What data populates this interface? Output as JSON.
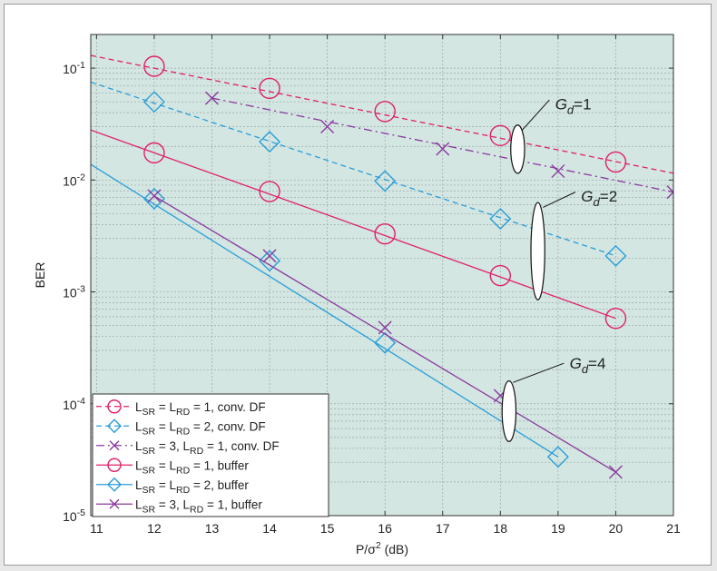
{
  "chart_data": {
    "type": "line",
    "xlabel": "P/σ",
    "xlabel_sup": "2",
    "xlabel_suffix": " (dB)",
    "ylabel": "BER",
    "xlim": [
      10.9,
      21
    ],
    "ylim": [
      1e-05,
      0.2
    ],
    "yscale": "log",
    "grid": true,
    "x_ticks": [
      11,
      12,
      13,
      14,
      15,
      16,
      17,
      18,
      19,
      20,
      21
    ],
    "y_ticks": [
      {
        "value": 0.1,
        "base": "10",
        "exp": "-1"
      },
      {
        "value": 0.01,
        "base": "10",
        "exp": "-2"
      },
      {
        "value": 0.001,
        "base": "10",
        "exp": "-3"
      },
      {
        "value": 0.0001,
        "base": "10",
        "exp": "-4"
      },
      {
        "value": 1e-05,
        "base": "10",
        "exp": "-5"
      }
    ],
    "series": [
      {
        "legend": [
          {
            "t": "L"
          },
          {
            "t": "SR",
            "sub": true
          },
          {
            "t": " = L"
          },
          {
            "t": "RD",
            "sub": true
          },
          {
            "t": " = 1, conv. DF"
          }
        ],
        "color": "#e0206a",
        "dash": "6,4",
        "marker": "circle",
        "marker_size": 11,
        "line": {
          "x": [
            10.9,
            21
          ],
          "y": [
            0.13,
            0.0115
          ]
        },
        "points": {
          "x": [
            12,
            14,
            16,
            18,
            20
          ],
          "y": [
            0.104,
            0.066,
            0.041,
            0.025,
            0.0145
          ]
        }
      },
      {
        "legend": [
          {
            "t": "L"
          },
          {
            "t": "SR",
            "sub": true
          },
          {
            "t": " = L"
          },
          {
            "t": "RD",
            "sub": true
          },
          {
            "t": " = 2, conv. DF"
          }
        ],
        "color": "#2a9ed8",
        "dash": "6,4",
        "marker": "diamond",
        "marker_size": 11,
        "line": {
          "x": [
            10.9,
            20
          ],
          "y": [
            0.075,
            0.0021
          ]
        },
        "points": {
          "x": [
            12,
            14,
            16,
            18,
            20
          ],
          "y": [
            0.05,
            0.022,
            0.0098,
            0.0045,
            0.0021
          ]
        }
      },
      {
        "legend": [
          {
            "t": "L"
          },
          {
            "t": "SR",
            "sub": true
          },
          {
            "t": " = 3, L"
          },
          {
            "t": "RD",
            "sub": true
          },
          {
            "t": " = 1, conv. DF"
          }
        ],
        "color": "#8a3a9e",
        "dash": "9,4,2,4",
        "marker": "x",
        "marker_size": 7,
        "line": {
          "x": [
            13,
            21
          ],
          "y": [
            0.054,
            0.0078
          ]
        },
        "points": {
          "x": [
            13,
            15,
            17,
            19,
            21
          ],
          "y": [
            0.054,
            0.03,
            0.019,
            0.012,
            0.0078
          ]
        }
      },
      {
        "legend": [
          {
            "t": "L"
          },
          {
            "t": "SR",
            "sub": true
          },
          {
            "t": " = L"
          },
          {
            "t": "RD",
            "sub": true
          },
          {
            "t": " = 1, buffer"
          }
        ],
        "color": "#e0206a",
        "dash": "",
        "marker": "circle",
        "marker_size": 11,
        "line": {
          "x": [
            10.9,
            20
          ],
          "y": [
            0.028,
            0.00058
          ]
        },
        "points": {
          "x": [
            12,
            14,
            16,
            18,
            20
          ],
          "y": [
            0.0175,
            0.0079,
            0.0033,
            0.0014,
            0.00058
          ]
        }
      },
      {
        "legend": [
          {
            "t": "L"
          },
          {
            "t": "SR",
            "sub": true
          },
          {
            "t": " = L"
          },
          {
            "t": "RD",
            "sub": true
          },
          {
            "t": " = 2, buffer"
          }
        ],
        "color": "#2a9ed8",
        "dash": "",
        "marker": "diamond",
        "marker_size": 11,
        "line": {
          "x": [
            10.9,
            19
          ],
          "y": [
            0.0138,
            3.35e-05
          ]
        },
        "points": {
          "x": [
            12,
            14,
            16,
            19
          ],
          "y": [
            0.0068,
            0.0019,
            0.00035,
            3.35e-05
          ]
        }
      },
      {
        "legend": [
          {
            "t": "L"
          },
          {
            "t": "SR",
            "sub": true
          },
          {
            "t": " = 3, L"
          },
          {
            "t": "RD",
            "sub": true
          },
          {
            "t": " = 1, buffer"
          }
        ],
        "color": "#8a3a9e",
        "dash": "",
        "marker": "x",
        "marker_size": 7,
        "line": {
          "x": [
            12,
            20
          ],
          "y": [
            0.0072,
            2.45e-05
          ]
        },
        "points": {
          "x": [
            12,
            14,
            16,
            18,
            20
          ],
          "y": [
            0.0072,
            0.0021,
            0.00048,
            0.000118,
            2.45e-05
          ]
        }
      }
    ],
    "legend_location": "bottom-left",
    "annotations": [
      {
        "base": "G",
        "sub": "d",
        "rest": "=1",
        "ellipse": {
          "cx": 18.3,
          "y_top": 0.031,
          "y_bottom": 0.0115,
          "rx": 0.12
        },
        "leader": {
          "x1": 18.38,
          "y1": 0.028,
          "x2": 18.85,
          "y2": 0.052
        },
        "text": {
          "x": 18.95,
          "y": 0.048
        }
      },
      {
        "base": "G",
        "sub": "d",
        "rest": "=2",
        "ellipse": {
          "cx": 18.65,
          "y_top": 0.0063,
          "y_bottom": 0.00085,
          "rx": 0.12
        },
        "leader": {
          "x1": 18.74,
          "y1": 0.0057,
          "x2": 19.3,
          "y2": 0.0078
        },
        "text": {
          "x": 19.4,
          "y": 0.0072
        }
      },
      {
        "base": "G",
        "sub": "d",
        "rest": "=4",
        "ellipse": {
          "cx": 18.15,
          "y_top": 0.00016,
          "y_bottom": 4.6e-05,
          "rx": 0.12
        },
        "leader": {
          "x1": 18.22,
          "y1": 0.000155,
          "x2": 19.1,
          "y2": 0.00023
        },
        "text": {
          "x": 19.2,
          "y": 0.00023
        }
      }
    ],
    "colors": {
      "plot_bg": "#d3e6e2",
      "grid": "#9aa8a8",
      "frame": "#9a9a9a",
      "axis": "#333333"
    }
  }
}
